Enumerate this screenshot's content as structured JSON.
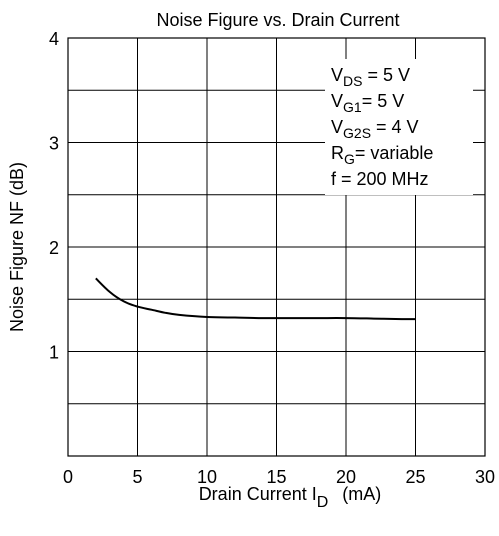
{
  "chart_data": {
    "type": "line",
    "title": "Noise Figure vs. Drain Current",
    "xlabel_main": "Drain  Current  I",
    "xlabel_sub": "D",
    "xlabel_unit": "(mA)",
    "ylabel": "Noise Figure  NF  (dB)",
    "xlim": [
      0,
      30
    ],
    "ylim": [
      0,
      4
    ],
    "xticks": [
      0,
      5,
      10,
      15,
      20,
      25,
      30
    ],
    "yticks": [
      1,
      2,
      3,
      4
    ],
    "grid": true,
    "series": [
      {
        "x": [
          2,
          3,
          4,
          5,
          6,
          7,
          8,
          10,
          12,
          14,
          16,
          18,
          20,
          22,
          24,
          25
        ],
        "y": [
          1.7,
          1.57,
          1.48,
          1.43,
          1.4,
          1.37,
          1.35,
          1.33,
          1.325,
          1.32,
          1.32,
          1.32,
          1.32,
          1.315,
          1.31,
          1.31
        ]
      }
    ],
    "annotations": [
      {
        "main": "V",
        "sub": "DS",
        "rest": " = 5 V"
      },
      {
        "main": "V",
        "sub": "G1",
        "rest": "= 5 V"
      },
      {
        "main": "V",
        "sub": "G2S",
        "rest": " = 4 V"
      },
      {
        "main": "R",
        "sub": "G",
        "rest": "= variable"
      },
      {
        "main": "f = 200 MHz",
        "sub": "",
        "rest": ""
      }
    ],
    "colors": {
      "line": "#000000",
      "grid": "#000000",
      "background": "#ffffff"
    }
  }
}
